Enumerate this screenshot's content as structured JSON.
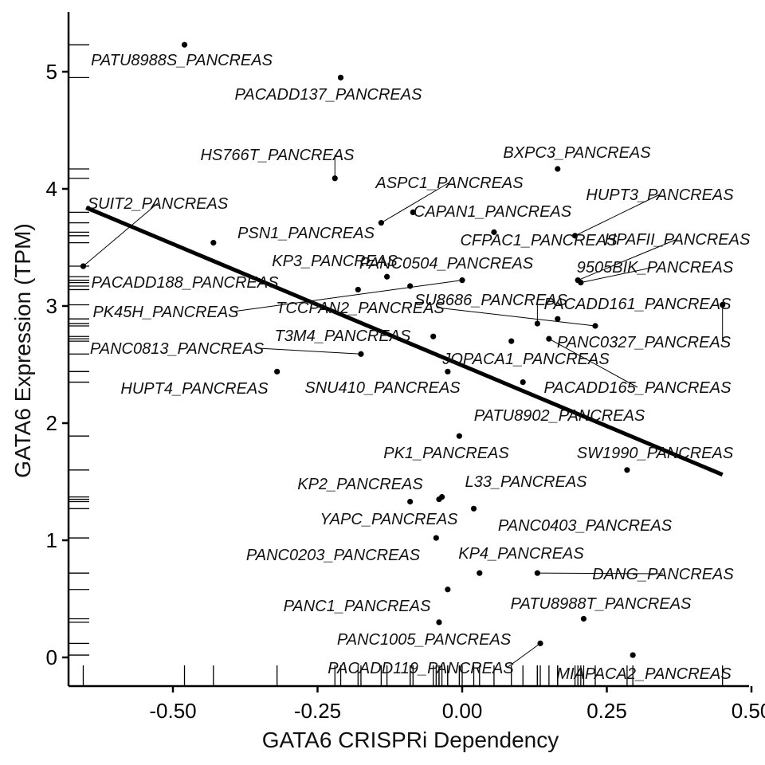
{
  "chart_data": {
    "type": "scatter",
    "xlabel": "GATA6 CRISPRi Dependency",
    "ylabel": "GATA6 Expression (TPM)",
    "xlim": [
      -0.68,
      0.5
    ],
    "ylim": [
      -0.25,
      5.5
    ],
    "x_ticks": [
      -0.5,
      -0.25,
      0.0,
      0.25,
      0.5
    ],
    "x_tick_labels": [
      "-0.50",
      "-0.25",
      "0.00",
      "0.25",
      "0.50"
    ],
    "y_ticks": [
      0,
      1,
      2,
      3,
      4,
      5
    ],
    "y_tick_labels": [
      "0",
      "1",
      "2",
      "3",
      "4",
      "5"
    ],
    "grid": false,
    "rug_plot": true,
    "regression_line": {
      "x": [
        -0.65,
        0.45
      ],
      "y": [
        3.84,
        1.56
      ]
    },
    "points": [
      {
        "label": "PATU8988S_PANCREAS",
        "x": -0.48,
        "y": 5.23
      },
      {
        "label": "PACADD137_PANCREAS",
        "x": -0.21,
        "y": 4.95
      },
      {
        "label": "HS766T_PANCREAS",
        "x": -0.22,
        "y": 4.09
      },
      {
        "label": "BXPC3_PANCREAS",
        "x": 0.165,
        "y": 4.17
      },
      {
        "label": "ASPC1_PANCREAS",
        "x": -0.14,
        "y": 3.71
      },
      {
        "label": "CAPAN1_PANCREAS",
        "x": -0.085,
        "y": 3.8
      },
      {
        "label": "SUIT2_PANCREAS",
        "x": -0.655,
        "y": 3.34
      },
      {
        "label": "PSN1_PANCREAS",
        "x": -0.43,
        "y": 3.54
      },
      {
        "label": "HUPT3_PANCREAS",
        "x": 0.195,
        "y": 3.6
      },
      {
        "label": "CFPAC1_PANCREAS",
        "x": 0.055,
        "y": 3.63
      },
      {
        "label": "HPAFII_PANCREAS",
        "x": 0.2,
        "y": 3.22
      },
      {
        "label": "KP3_PANCREAS",
        "x": -0.13,
        "y": 3.25
      },
      {
        "label": "PANC0504_PANCREAS",
        "x": -0.09,
        "y": 3.17
      },
      {
        "label": "9505BIK_PANCREAS",
        "x": 0.205,
        "y": 3.2
      },
      {
        "label": "PACADD188_PANCREAS",
        "x": -0.18,
        "y": 3.14
      },
      {
        "label": "PK45H_PANCREAS",
        "x": 0.0,
        "y": 3.22
      },
      {
        "label": "SU8686_PANCREAS",
        "x": 0.13,
        "y": 2.85
      },
      {
        "label": "PACADD161_PANCREAS",
        "x": 0.165,
        "y": 2.89
      },
      {
        "label": "TCCPAN2_PANCREAS",
        "x": 0.23,
        "y": 2.83
      },
      {
        "label": "PANC0327_PANCREAS",
        "x": 0.45,
        "y": 3.01
      },
      {
        "label": "T3M4_PANCREAS",
        "x": -0.05,
        "y": 2.74
      },
      {
        "label": "PANC0813_PANCREAS",
        "x": -0.175,
        "y": 2.59
      },
      {
        "label": "JOPACA1_PANCREAS",
        "x": 0.085,
        "y": 2.7
      },
      {
        "label": "PACADD165_PANCREAS",
        "x": 0.15,
        "y": 2.72
      },
      {
        "label": "HUPT4_PANCREAS",
        "x": -0.32,
        "y": 2.44
      },
      {
        "label": "SNU410_PANCREAS",
        "x": -0.025,
        "y": 2.44
      },
      {
        "label": "PATU8902_PANCREAS",
        "x": 0.105,
        "y": 2.35
      },
      {
        "label": "PK1_PANCREAS",
        "x": -0.005,
        "y": 1.89
      },
      {
        "label": "SW1990_PANCREAS",
        "x": 0.285,
        "y": 1.6
      },
      {
        "label": "KP2_PANCREAS",
        "x": -0.09,
        "y": 1.33
      },
      {
        "label": "L33_PANCREAS",
        "x": -0.035,
        "y": 1.37
      },
      {
        "label": "YAPC_PANCREAS",
        "x": -0.04,
        "y": 1.35
      },
      {
        "label": "PANC0403_PANCREAS",
        "x": 0.02,
        "y": 1.27
      },
      {
        "label": "PANC0203_PANCREAS",
        "x": -0.045,
        "y": 1.02
      },
      {
        "label": "KP4_PANCREAS",
        "x": 0.03,
        "y": 0.72
      },
      {
        "label": "DANG_PANCREAS",
        "x": 0.13,
        "y": 0.72
      },
      {
        "label": "PANC1_PANCREAS",
        "x": -0.025,
        "y": 0.58
      },
      {
        "label": "PATU8988T_PANCREAS",
        "x": 0.21,
        "y": 0.33
      },
      {
        "label": "PANC1005_PANCREAS",
        "x": -0.04,
        "y": 0.3
      },
      {
        "label": "PACADD119_PANCREAS",
        "x": 0.135,
        "y": 0.12
      },
      {
        "label": "MIAPACA2_PANCREAS",
        "x": 0.295,
        "y": 0.02
      }
    ]
  }
}
